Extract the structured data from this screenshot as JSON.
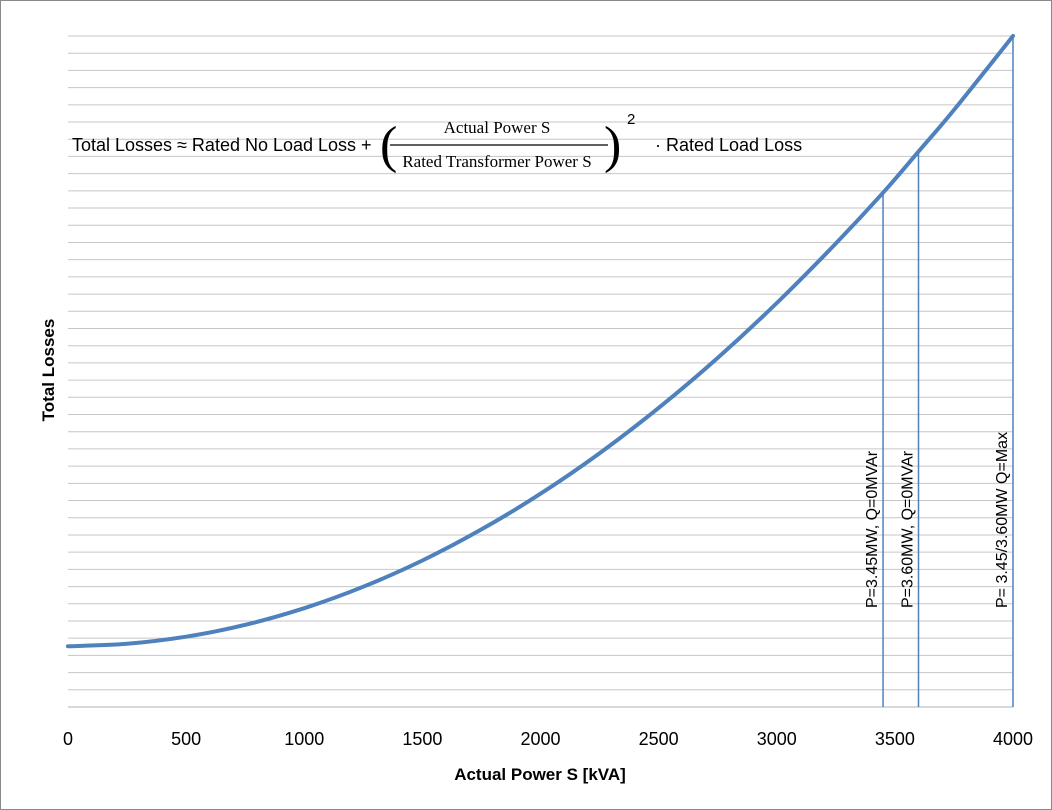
{
  "chart_data": {
    "type": "line",
    "title": "",
    "xlabel": "Actual Power S [kVA]",
    "ylabel": "Total Losses",
    "xlim": [
      0,
      4000
    ],
    "x_ticks": [
      "0",
      "500",
      "1000",
      "1500",
      "2000",
      "2500",
      "3000",
      "3500",
      "4000"
    ],
    "y_ticks_labeled": false,
    "grid": "horizontal",
    "legend": "none",
    "series_color": "#4f81bd",
    "marker_line_color": "#4f81bd",
    "series": [
      {
        "x": [
          0,
          250,
          500,
          750,
          1000,
          1250,
          1500,
          1750,
          2000,
          2250,
          2500,
          2750,
          3000,
          3250,
          3450,
          3600,
          3750,
          4000
        ],
        "y": [
          0.0,
          0.25,
          0.98,
          2.19,
          3.89,
          6.08,
          8.76,
          11.93,
          15.57,
          19.71,
          24.33,
          29.44,
          35.04,
          41.12,
          46.3,
          50.5,
          54.75,
          62.3
        ]
      }
    ],
    "annotations": {
      "formula": {
        "prefix": "Total Losses ≈ Rated No Load Loss + ",
        "numerator": "Actual Power S",
        "denominator": "Rated Transformer Power S",
        "exponent": "2",
        "suffix": "· Rated Load Loss"
      },
      "vertical_markers": [
        {
          "x": 3450,
          "label": "P=3.45MW, Q=0MVAr"
        },
        {
          "x": 3600,
          "label": "P=3.60MW, Q=0MVAr"
        },
        {
          "x": 4000,
          "label": "P= 3.45/3.60MW Q=Max"
        }
      ]
    }
  }
}
